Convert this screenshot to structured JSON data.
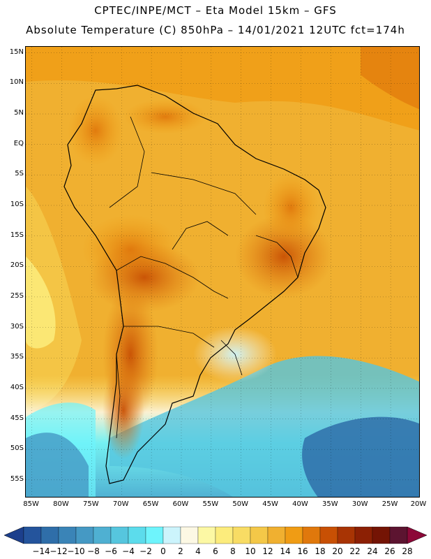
{
  "header": {
    "line1": "CPTEC/INPE/MCT –  Eta Model 15km – GFS",
    "line2": "Absolute Temperature (C) 850hPa – 14/01/2021 12UTC fct=174h"
  },
  "map": {
    "lat_range": [
      -58,
      16
    ],
    "lon_range": [
      -86,
      -20
    ],
    "lat_ticks": [
      {
        "value": 15,
        "label": "15N"
      },
      {
        "value": 10,
        "label": "10N"
      },
      {
        "value": 5,
        "label": "5N"
      },
      {
        "value": 0,
        "label": "EQ"
      },
      {
        "value": -5,
        "label": "5S"
      },
      {
        "value": -10,
        "label": "10S"
      },
      {
        "value": -15,
        "label": "15S"
      },
      {
        "value": -20,
        "label": "20S"
      },
      {
        "value": -25,
        "label": "25S"
      },
      {
        "value": -30,
        "label": "30S"
      },
      {
        "value": -35,
        "label": "35S"
      },
      {
        "value": -40,
        "label": "40S"
      },
      {
        "value": -45,
        "label": "45S"
      },
      {
        "value": -50,
        "label": "50S"
      },
      {
        "value": -55,
        "label": "55S"
      }
    ],
    "lon_ticks": [
      {
        "value": -85,
        "label": "85W"
      },
      {
        "value": -80,
        "label": "80W"
      },
      {
        "value": -75,
        "label": "75W"
      },
      {
        "value": -70,
        "label": "70W"
      },
      {
        "value": -65,
        "label": "65W"
      },
      {
        "value": -60,
        "label": "60W"
      },
      {
        "value": -55,
        "label": "55W"
      },
      {
        "value": -50,
        "label": "50W"
      },
      {
        "value": -45,
        "label": "45W"
      },
      {
        "value": -40,
        "label": "40W"
      },
      {
        "value": -35,
        "label": "35W"
      },
      {
        "value": -30,
        "label": "30W"
      },
      {
        "value": -25,
        "label": "25W"
      },
      {
        "value": -20,
        "label": "20W"
      }
    ]
  },
  "colorbar": {
    "unit": "C",
    "labels": [
      "-14",
      "-12",
      "-10",
      "-8",
      "-6",
      "-4",
      "-2",
      "0",
      "2",
      "4",
      "6",
      "8",
      "10",
      "12",
      "14",
      "16",
      "18",
      "20",
      "22",
      "24",
      "26",
      "28"
    ],
    "colors": [
      "#1c3f8c",
      "#24549c",
      "#2f6ea9",
      "#3a84b7",
      "#4599c4",
      "#4fb0d2",
      "#56c6de",
      "#5cdcec",
      "#6ef4fc",
      "#ccf4fc",
      "#fcf8e4",
      "#fcf8a4",
      "#fcec7c",
      "#f8dc64",
      "#f4c848",
      "#f0b030",
      "#f09c14",
      "#e0780c",
      "#c85004",
      "#a83404",
      "#8c2004",
      "#741404",
      "#5c1430",
      "#8c0838"
    ]
  }
}
